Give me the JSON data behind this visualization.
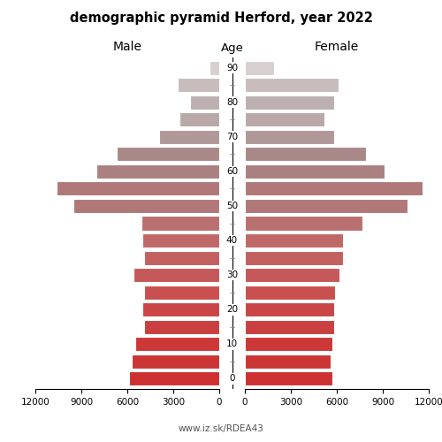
{
  "title": "demographic pyramid Herford, year 2022",
  "xlabel_left": "Male",
  "xlabel_right": "Female",
  "xlabel_center": "Age",
  "footer": "www.iz.sk/RDEA43",
  "age_groups": [
    0,
    5,
    10,
    15,
    20,
    25,
    30,
    35,
    40,
    45,
    50,
    55,
    60,
    65,
    70,
    75,
    80,
    85,
    90
  ],
  "male": [
    5900,
    5700,
    5500,
    4900,
    5000,
    4900,
    5600,
    4900,
    5000,
    5100,
    9500,
    10600,
    8000,
    6700,
    3900,
    2600,
    1900,
    2700,
    650
  ],
  "female": [
    5700,
    5600,
    5700,
    5800,
    5800,
    5900,
    6200,
    6400,
    6400,
    7700,
    10600,
    11600,
    9100,
    7900,
    5800,
    5200,
    5800,
    6100,
    1900
  ],
  "bar_colors": [
    "#cd3030",
    "#cc3535",
    "#cc3838",
    "#ca4040",
    "#ca4545",
    "#c95050",
    "#c55858",
    "#c36060",
    "#c06868",
    "#ba7070",
    "#b07878",
    "#b07878",
    "#aa8080",
    "#aa8888",
    "#b09898",
    "#b8a8a8",
    "#bcb0b0",
    "#c8bcbc",
    "#d8d0d0"
  ],
  "xlim": 12000,
  "xticks_left": [
    12000,
    9000,
    6000,
    3000,
    0
  ],
  "xticks_right": [
    0,
    3000,
    6000,
    9000,
    12000
  ],
  "tick_labels_left": [
    "12000",
    "9000",
    "6000",
    "3000",
    "0"
  ],
  "tick_labels_right": [
    "0",
    "3000",
    "6000",
    "9000",
    "12000"
  ],
  "background_color": "#ffffff",
  "bar_edgecolor": "#ffffff",
  "bar_linewidth": 0.8
}
